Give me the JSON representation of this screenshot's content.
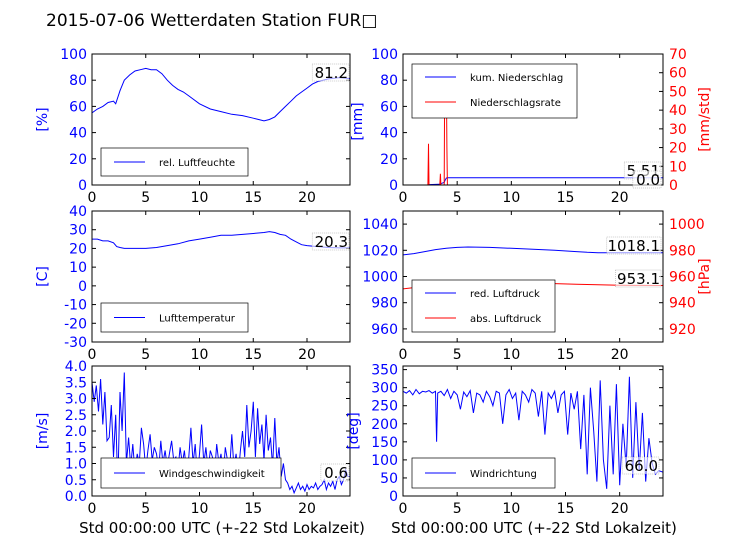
{
  "figure_title": "2015-07-06 Wetterdaten Station FUR□",
  "colors": {
    "primary": "#0000ff",
    "secondary": "#ff0000",
    "axis": "#000000",
    "legend_border": "#000000"
  },
  "chart_data": [
    {
      "id": "humidity",
      "type": "line",
      "ylabel": "[%]",
      "xlabel": "",
      "xlim": [
        0,
        24
      ],
      "ylim": [
        0,
        100
      ],
      "xticks": [
        0,
        5,
        10,
        15,
        20
      ],
      "yticks": [
        0,
        20,
        40,
        60,
        80,
        100
      ],
      "last_value_label": "81.2",
      "legend_position": "lower-left",
      "series": [
        {
          "name": "rel. Luftfeuchte",
          "color": "#0000ff",
          "x": [
            0,
            0.5,
            1,
            1.5,
            2,
            2.2,
            2.6,
            3,
            3.5,
            4,
            4.5,
            5,
            5.5,
            6,
            6.5,
            7,
            7.5,
            8,
            8.5,
            9,
            10,
            11,
            12,
            13,
            14,
            15,
            15.5,
            16,
            16.5,
            17,
            17.5,
            18,
            18.5,
            19,
            19.5,
            20,
            20.5,
            21,
            22,
            23,
            24
          ],
          "y": [
            55,
            58,
            60,
            63,
            64,
            62,
            72,
            80,
            84,
            87,
            88,
            89,
            88,
            88,
            85,
            80,
            76,
            73,
            71,
            68,
            62,
            58,
            56,
            54,
            53,
            51,
            50,
            49,
            50,
            52,
            56,
            60,
            64,
            68,
            71,
            74,
            77,
            79,
            81,
            82,
            81.2
          ]
        }
      ]
    },
    {
      "id": "precip",
      "type": "line",
      "ylabel": "[mm]",
      "ylabel_right": "[mm/std]",
      "xlabel": "",
      "xlim": [
        0,
        24
      ],
      "ylim": [
        0,
        100
      ],
      "ylim_right": [
        0,
        70
      ],
      "xticks": [
        0,
        5,
        10,
        15,
        20
      ],
      "yticks": [
        0,
        20,
        40,
        60,
        80,
        100
      ],
      "yticks_right": [
        0,
        10,
        20,
        30,
        40,
        50,
        60,
        70
      ],
      "last_value_labels": [
        "5.51",
        "0.0"
      ],
      "legend_position": "upper-left",
      "series": [
        {
          "name": "kum. Niederschlag",
          "color": "#0000ff",
          "axis": "left",
          "x": [
            0,
            2.3,
            2.4,
            3.3,
            3.5,
            3.8,
            3.9,
            4.0,
            4.1,
            24
          ],
          "y": [
            0,
            0,
            0.3,
            0.5,
            1,
            2,
            4,
            5.3,
            5.51,
            5.51
          ]
        },
        {
          "name": "Niederschlagsrate",
          "color": "#ff0000",
          "axis": "right",
          "x": [
            0,
            2.3,
            2.35,
            2.4,
            2.5,
            3.4,
            3.45,
            3.5,
            3.8,
            3.85,
            3.9,
            4.0,
            4.05,
            4.1,
            4.2,
            24
          ],
          "y": [
            0,
            0,
            22,
            0,
            0,
            0,
            6,
            0,
            0,
            58,
            44,
            62,
            20,
            0,
            0,
            0
          ]
        }
      ]
    },
    {
      "id": "temperature",
      "type": "line",
      "ylabel": "[C]",
      "xlabel": "",
      "xlim": [
        0,
        24
      ],
      "ylim": [
        -30,
        40
      ],
      "xticks": [
        0,
        5,
        10,
        15,
        20
      ],
      "yticks": [
        -30,
        -20,
        -10,
        0,
        10,
        20,
        30,
        40
      ],
      "last_value_label": "20.3",
      "legend_position": "lower-left",
      "series": [
        {
          "name": "Lufttemperatur",
          "color": "#0000ff",
          "x": [
            0,
            0.5,
            1,
            1.5,
            2,
            2.3,
            2.6,
            3,
            3.5,
            4,
            5,
            6,
            7,
            8,
            9,
            10,
            11,
            12,
            13,
            14,
            15,
            16,
            16.5,
            17,
            17.5,
            18,
            18.5,
            19,
            19.5,
            20,
            21,
            22,
            23,
            24
          ],
          "y": [
            25,
            25,
            24,
            24,
            23,
            21,
            20.5,
            20,
            20,
            20,
            20,
            20.5,
            21.5,
            22.5,
            24,
            25,
            26,
            27,
            27,
            27.5,
            28,
            28.5,
            29,
            28.5,
            27.5,
            27,
            25,
            23.5,
            22,
            21.5,
            21,
            20.5,
            20.3,
            20.3
          ]
        }
      ]
    },
    {
      "id": "pressure",
      "type": "line",
      "ylabel": "",
      "ylabel_right": "[hPa]",
      "xlabel": "",
      "xlim": [
        0,
        24
      ],
      "ylim": [
        950,
        1050
      ],
      "ylim_right": [
        910,
        1010
      ],
      "xticks": [
        0,
        5,
        10,
        15,
        20
      ],
      "yticks": [
        960,
        980,
        1000,
        1020,
        1040
      ],
      "yticks_right": [
        920,
        940,
        960,
        980,
        1000
      ],
      "last_value_labels": [
        "1018.1",
        "953.1"
      ],
      "legend_position": "lower-left",
      "series": [
        {
          "name": "red. Luftdruck",
          "color": "#0000ff",
          "axis": "left",
          "x": [
            0,
            1,
            2,
            3,
            4,
            5,
            6,
            8,
            10,
            12,
            14,
            16,
            17,
            18,
            20,
            22,
            24
          ],
          "y": [
            1016.5,
            1017.5,
            1019,
            1020.5,
            1021.5,
            1022.2,
            1022.5,
            1022.2,
            1021.5,
            1020.8,
            1020,
            1019,
            1018.5,
            1018.2,
            1018.2,
            1018.2,
            1018.1
          ]
        },
        {
          "name": "abs. Luftdruck",
          "color": "#ff0000",
          "axis": "right",
          "x": [
            0,
            1,
            2,
            3,
            4,
            5,
            6,
            8,
            10,
            12,
            14,
            16,
            18,
            20,
            22,
            24
          ],
          "y": [
            950.5,
            951.5,
            952.5,
            953.5,
            954.2,
            955,
            955.4,
            955.5,
            955.3,
            955,
            954.6,
            954.1,
            953.7,
            953.3,
            953.2,
            953.1
          ]
        }
      ]
    },
    {
      "id": "windspeed",
      "type": "line",
      "ylabel": "[m/s]",
      "xlabel": "Std 00:00:00 UTC (+-22 Std Lokalzeit)",
      "xlim": [
        0,
        24
      ],
      "ylim": [
        0,
        4
      ],
      "xticks": [
        0,
        5,
        10,
        15,
        20
      ],
      "yticks": [
        0,
        0.5,
        1,
        1.5,
        2,
        2.5,
        3,
        3.5,
        4
      ],
      "ytick_labels": [
        "0.0",
        "0.5",
        "1.0",
        "1.5",
        "2.0",
        "2.5",
        "3.0",
        "3.5",
        "4.0"
      ],
      "last_value_label": "0.6",
      "legend_position": "lower-left",
      "series": [
        {
          "name": "Windgeschwindigkeit",
          "color": "#0000ff",
          "x": [
            0,
            0.2,
            0.4,
            0.6,
            0.8,
            1.0,
            1.2,
            1.4,
            1.6,
            1.8,
            2.0,
            2.2,
            2.4,
            2.6,
            2.8,
            3.0,
            3.2,
            3.4,
            3.6,
            3.8,
            4.0,
            4.2,
            4.4,
            4.6,
            4.8,
            5.0,
            5.2,
            5.4,
            5.6,
            5.8,
            6.0,
            6.2,
            6.4,
            6.6,
            6.8,
            7.0,
            7.2,
            7.4,
            7.6,
            7.8,
            8.0,
            8.2,
            8.4,
            8.6,
            8.8,
            9.0,
            9.2,
            9.4,
            9.6,
            9.8,
            10.0,
            10.2,
            10.4,
            10.6,
            10.8,
            11.0,
            11.2,
            11.4,
            11.6,
            11.8,
            12.0,
            12.2,
            12.4,
            12.6,
            12.8,
            13.0,
            13.2,
            13.4,
            13.6,
            13.8,
            14.0,
            14.2,
            14.4,
            14.6,
            14.8,
            15.0,
            15.2,
            15.4,
            15.6,
            15.8,
            16.0,
            16.2,
            16.4,
            16.6,
            16.8,
            17.0,
            17.2,
            17.4,
            17.6,
            17.8,
            18.0,
            18.2,
            18.4,
            18.6,
            18.8,
            19.0,
            19.2,
            19.4,
            19.6,
            19.8,
            20.0,
            20.2,
            20.4,
            20.6,
            20.8,
            21.0,
            21.2,
            21.4,
            21.6,
            21.8,
            22.0,
            22.2,
            22.4,
            22.6,
            22.8,
            23.0,
            23.2,
            23.4,
            23.6,
            23.8,
            24.0
          ],
          "y": [
            3.5,
            2.9,
            3.4,
            2.6,
            3.6,
            2.2,
            3.2,
            1.7,
            1.8,
            2.8,
            1.2,
            2.5,
            0.3,
            3.2,
            2.0,
            3.8,
            1.0,
            1.8,
            0.9,
            1.6,
            0.7,
            1.3,
            1.0,
            2.1,
            1.6,
            0.8,
            1.4,
            1.9,
            1.1,
            1.5,
            1.3,
            0.8,
            1.7,
            1.0,
            1.4,
            0.9,
            1.3,
            1.7,
            1.1,
            1.2,
            0.8,
            1.5,
            1.0,
            1.4,
            0.7,
            1.2,
            2.1,
            1.0,
            1.6,
            0.6,
            1.3,
            2.2,
            1.0,
            1.5,
            0.8,
            1.4,
            1.2,
            0.7,
            1.6,
            1.0,
            1.3,
            0.6,
            1.5,
            1.1,
            0.8,
            1.9,
            0.9,
            1.3,
            0.6,
            1.4,
            2.0,
            1.2,
            2.8,
            1.5,
            2.0,
            2.9,
            1.2,
            2.7,
            1.6,
            2.2,
            1.1,
            2.5,
            1.4,
            1.8,
            0.9,
            2.4,
            1.0,
            1.5,
            0.6,
            1.0,
            0.5,
            0.4,
            0.2,
            0.3,
            0.1,
            0.25,
            0.4,
            0.2,
            0.3,
            0.15,
            0.35,
            0.2,
            0.3,
            0.25,
            0.4,
            0.2,
            0.3,
            0.35,
            0.5,
            0.2,
            0.4,
            0.3,
            0.45,
            0.2,
            0.5,
            0.6,
            0.35,
            0.5,
            0.8,
            0.6,
            0.6
          ]
        }
      ]
    },
    {
      "id": "winddir",
      "type": "line",
      "ylabel": "[deg]",
      "xlabel": "Std 00:00:00 UTC (+-22 Std Lokalzeit)",
      "xlim": [
        0,
        24
      ],
      "ylim": [
        0,
        360
      ],
      "xticks": [
        0,
        5,
        10,
        15,
        20
      ],
      "yticks": [
        0,
        50,
        100,
        150,
        200,
        250,
        300,
        350
      ],
      "last_value_label": "66.0",
      "legend_position": "lower-left",
      "series": [
        {
          "name": "Windrichtung",
          "color": "#0000ff",
          "x": [
            0,
            0.3,
            0.6,
            0.9,
            1.2,
            1.5,
            1.8,
            2.1,
            2.4,
            2.7,
            3.0,
            3.1,
            3.2,
            3.5,
            3.8,
            4.1,
            4.4,
            4.7,
            5.0,
            5.3,
            5.6,
            5.9,
            6.2,
            6.5,
            6.8,
            7.1,
            7.4,
            7.7,
            8.0,
            8.3,
            8.6,
            8.9,
            9.2,
            9.5,
            9.8,
            10.1,
            10.4,
            10.7,
            11.0,
            11.3,
            11.6,
            11.9,
            12.2,
            12.5,
            12.8,
            13.1,
            13.4,
            13.7,
            14.0,
            14.3,
            14.6,
            14.9,
            15.2,
            15.5,
            15.8,
            16.1,
            16.4,
            16.7,
            17.0,
            17.3,
            17.6,
            17.9,
            18.2,
            18.5,
            18.8,
            19.1,
            19.4,
            19.7,
            20.0,
            20.3,
            20.6,
            20.9,
            21.2,
            21.5,
            21.8,
            22.1,
            22.4,
            22.7,
            23.0,
            23.3,
            23.6,
            24.0
          ],
          "y": [
            290,
            285,
            292,
            280,
            295,
            283,
            290,
            288,
            292,
            285,
            290,
            150,
            285,
            290,
            278,
            295,
            270,
            290,
            280,
            240,
            288,
            275,
            292,
            230,
            285,
            280,
            260,
            290,
            275,
            250,
            290,
            285,
            200,
            280,
            295,
            270,
            285,
            210,
            290,
            280,
            260,
            295,
            285,
            220,
            290,
            170,
            285,
            270,
            290,
            230,
            280,
            290,
            170,
            285,
            240,
            290,
            130,
            280,
            60,
            300,
            180,
            40,
            320,
            100,
            20,
            250,
            60,
            310,
            30,
            200,
            80,
            330,
            50,
            260,
            70,
            230,
            40,
            160,
            90,
            60,
            70,
            66
          ]
        }
      ]
    }
  ]
}
